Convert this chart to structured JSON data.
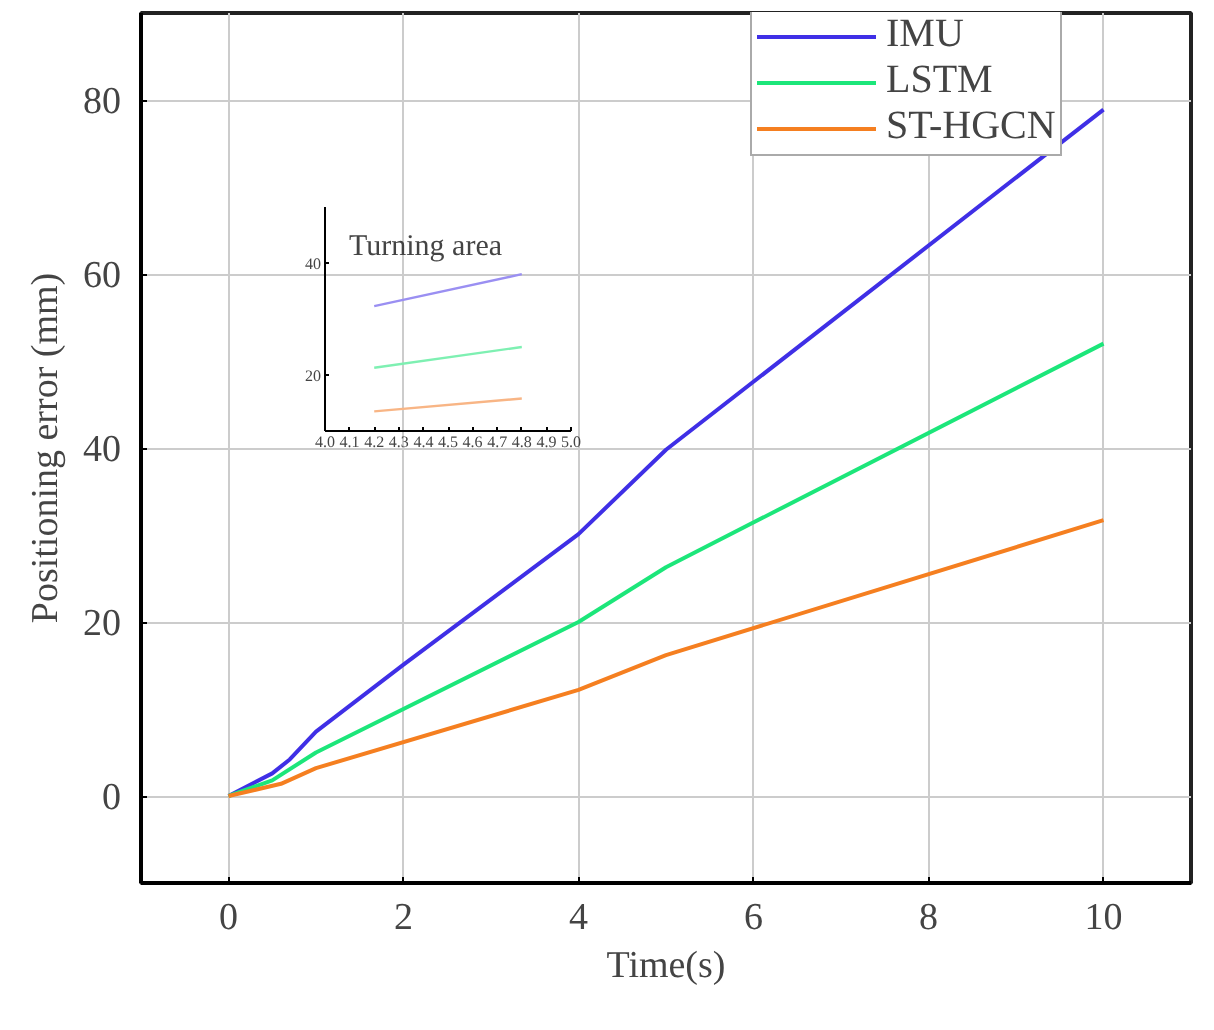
{
  "chart_data": [
    {
      "type": "line",
      "xlabel": "Time(s)",
      "ylabel": "Positioning error (mm)",
      "xlim": [
        -1,
        11
      ],
      "ylim": [
        -10,
        90
      ],
      "xticks": [
        0,
        2,
        4,
        6,
        8,
        10
      ],
      "yticks": [
        0,
        20,
        40,
        60,
        80
      ],
      "grid": true,
      "legend": "top right",
      "series": [
        {
          "name": "IMU",
          "color": "#3f2fe6",
          "x": [
            0,
            0.5,
            0.7,
            1,
            2,
            4,
            5,
            10
          ],
          "values": [
            0,
            2.6,
            4.2,
            7.4,
            15.1,
            30.1,
            39.8,
            78.9
          ]
        },
        {
          "name": "LSTM",
          "color": "#1ce67a",
          "x": [
            0,
            0.5,
            1,
            4,
            5,
            10
          ],
          "values": [
            0,
            1.8,
            5.0,
            20,
            26.3,
            52
          ]
        },
        {
          "name": "ST-HGCN",
          "color": "#f57f20",
          "x": [
            0,
            0.6,
            1,
            4,
            5,
            10
          ],
          "values": [
            0,
            1.4,
            3.2,
            12.2,
            16.2,
            31.7
          ]
        }
      ]
    },
    {
      "type": "line",
      "title": "Turning area",
      "xlim": [
        4.0,
        5.0
      ],
      "ylim": [
        10,
        50
      ],
      "xticks": [
        {
          "value": 4.0,
          "label": "4.0"
        },
        4.1,
        4.2,
        4.3,
        4.4,
        4.5,
        4.6,
        4.7,
        4.8,
        4.9,
        {
          "value": 5.0,
          "label": "5.0"
        }
      ],
      "yticks": [
        20,
        40
      ],
      "grid": false,
      "series": [
        {
          "color": "#9a8ff2",
          "x": [
            4.2,
            4.8
          ],
          "values": [
            32.3,
            38.0
          ]
        },
        {
          "color": "#7ef0b2",
          "x": [
            4.2,
            4.8
          ],
          "values": [
            21.3,
            25.0
          ]
        },
        {
          "color": "#f8b585",
          "x": [
            4.2,
            4.8
          ],
          "values": [
            13.5,
            15.8
          ]
        }
      ]
    }
  ]
}
